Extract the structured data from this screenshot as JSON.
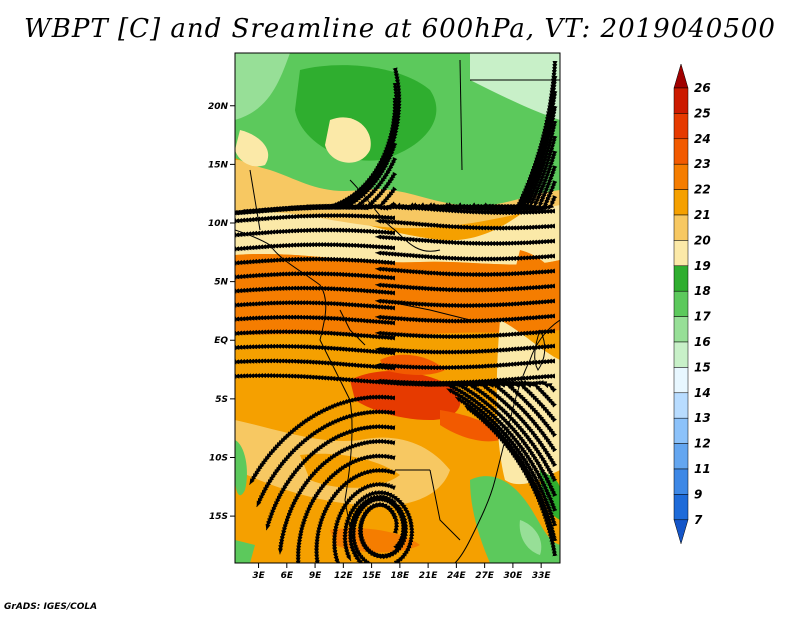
{
  "title": "WBPT [C] and Sreamline at 600hPa, VT: 2019040500",
  "credit": "GrADS: IGES/COLA",
  "map": {
    "lat_ticks": [
      "20N",
      "15N",
      "10N",
      "5N",
      "EQ",
      "5S",
      "10S",
      "15S"
    ],
    "lat_values": [
      20,
      15,
      10,
      5,
      0,
      -5,
      -10,
      -15
    ],
    "lon_ticks": [
      "3E",
      "6E",
      "9E",
      "12E",
      "15E",
      "18E",
      "21E",
      "24E",
      "27E",
      "30E",
      "33E"
    ],
    "lon_values": [
      3,
      6,
      9,
      12,
      15,
      18,
      21,
      24,
      27,
      30,
      33
    ],
    "lat_range": [
      -19,
      24.5
    ],
    "lon_range": [
      0.5,
      35
    ]
  },
  "colorbar": {
    "labels": [
      "26",
      "25",
      "24",
      "23",
      "22",
      "21",
      "20",
      "19",
      "18",
      "17",
      "16",
      "15",
      "14",
      "13",
      "12",
      "11",
      "9",
      "7"
    ],
    "colors": [
      "#b00000",
      "#cc1a00",
      "#e63a00",
      "#f25a00",
      "#f57d00",
      "#f5a000",
      "#f7c862",
      "#fbe9a8",
      "#2fae2f",
      "#5cc95c",
      "#97df97",
      "#c8f0c8",
      "#e8f7ff",
      "#b8dcff",
      "#8cc2fa",
      "#64a6f0",
      "#3d88e6",
      "#1e6bd9",
      "#1455c8"
    ],
    "top_arrow_color": "#a00000",
    "bottom_arrow_color": "#1455c8"
  }
}
